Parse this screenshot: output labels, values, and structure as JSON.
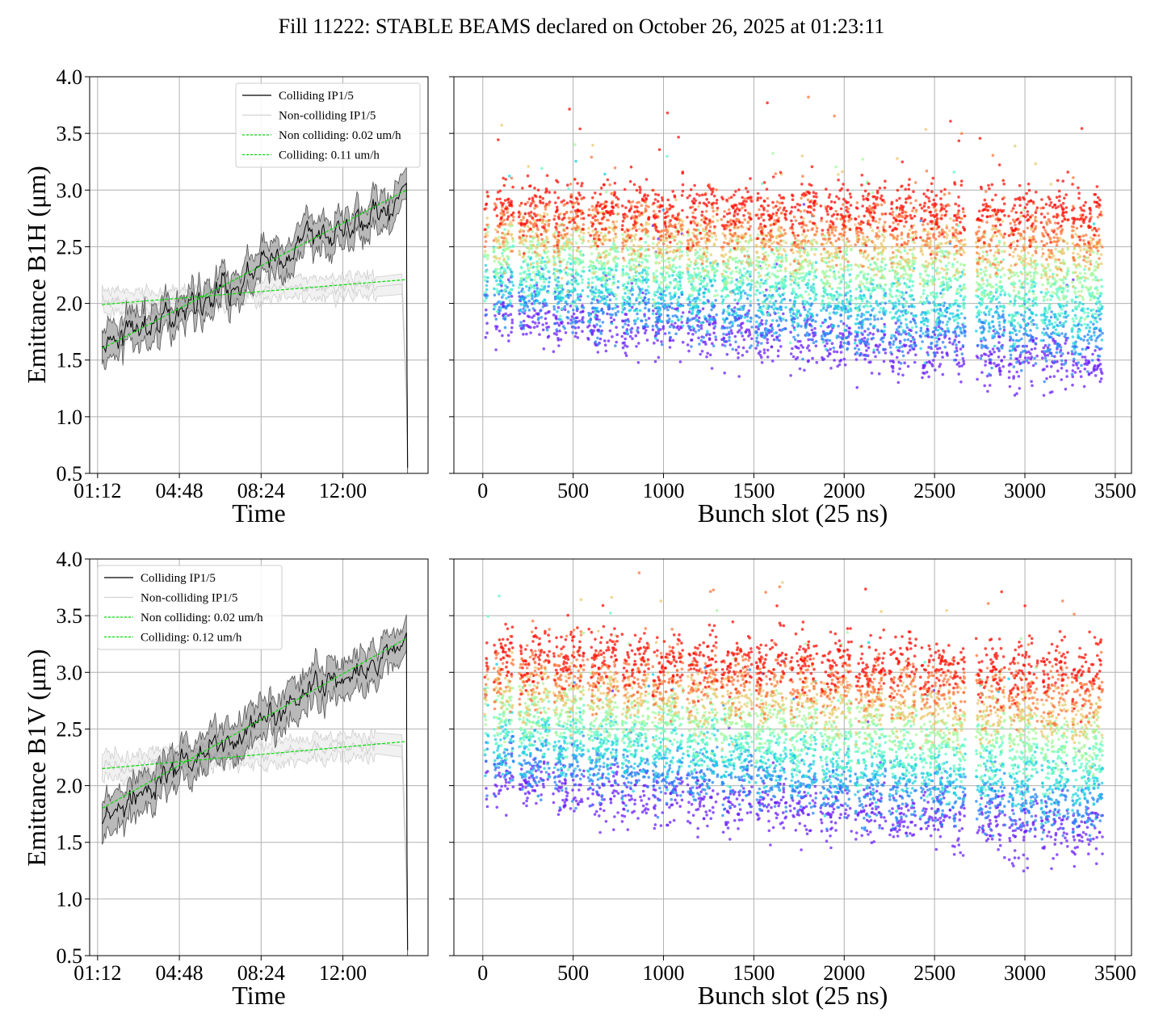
{
  "title": "Fill 11222: STABLE BEAMS declared on October 26, 2025 at 01:23:11",
  "chart_data": [
    {
      "id": "b1h-time",
      "type": "line",
      "xlabel": "Time",
      "ylabel": "Emittance B1H (μm)",
      "ylim": [
        0.5,
        4.0
      ],
      "yticks": [
        "0.5",
        "1.0",
        "1.5",
        "2.0",
        "2.5",
        "3.0",
        "3.5",
        "4.0"
      ],
      "xlim_hours": [
        0.85,
        15.75
      ],
      "xticks": [
        {
          "label": "01:12",
          "hours": 1.2
        },
        {
          "label": "04:48",
          "hours": 4.8
        },
        {
          "label": "08:24",
          "hours": 8.4
        },
        {
          "label": "12:00",
          "hours": 12.0
        }
      ],
      "legend_position": "top-right",
      "grid": true,
      "series": [
        {
          "name": "Colliding IP1/5",
          "color": "#000000",
          "band_color": "#808080",
          "x": [
            1.4,
            2.5,
            3.5,
            4.5,
            5.5,
            6.5,
            7.5,
            8.5,
            9.5,
            10.5,
            11.5,
            12.5,
            13.5,
            14.0,
            14.6,
            14.8,
            14.82,
            14.85
          ],
          "y": [
            1.58,
            1.76,
            1.82,
            1.92,
            2.02,
            2.12,
            2.2,
            2.35,
            2.42,
            2.58,
            2.6,
            2.7,
            2.82,
            2.86,
            2.95,
            3.06,
            1.5,
            0.55
          ],
          "band_width": 0.14
        },
        {
          "name": "Non-colliding IP1/5",
          "color": "#d3d3d3",
          "band_color": "#e6e6e6",
          "x": [
            1.4,
            2.5,
            4.0,
            6.0,
            8.0,
            10.0,
            12.0,
            13.5,
            14.6,
            14.8,
            14.85
          ],
          "y": [
            2.0,
            2.01,
            2.03,
            2.05,
            2.12,
            2.13,
            2.16,
            2.17,
            2.17,
            1.2,
            0.55
          ],
          "band_width": 0.09
        },
        {
          "name": "Non colliding: 0.02 um/h",
          "color": "#00dd00",
          "dashed": true,
          "x": [
            1.4,
            14.8
          ],
          "y": [
            1.99,
            2.21
          ]
        },
        {
          "name": "Colliding: 0.11 um/h",
          "color": "#00dd00",
          "dashed": true,
          "x": [
            1.4,
            14.8
          ],
          "y": [
            1.6,
            3.0
          ]
        }
      ]
    },
    {
      "id": "b1h-bunch",
      "type": "scatter",
      "xlabel": "Bunch slot (25 ns)",
      "ylabel": "",
      "xlim": [
        -160,
        3590
      ],
      "ylim": [
        0.5,
        4.0
      ],
      "xticks": [
        "0",
        "500",
        "1000",
        "1500",
        "2000",
        "2500",
        "3000",
        "3500"
      ],
      "grid": true,
      "colormap": "rainbow",
      "trains": [
        {
          "start": 10,
          "end": 30
        },
        {
          "start": 60,
          "end": 170
        },
        {
          "start": 200,
          "end": 370
        },
        {
          "start": 390,
          "end": 560
        },
        {
          "start": 580,
          "end": 750
        },
        {
          "start": 770,
          "end": 920
        },
        {
          "start": 940,
          "end": 1110
        },
        {
          "start": 1130,
          "end": 1300
        },
        {
          "start": 1320,
          "end": 1490
        },
        {
          "start": 1510,
          "end": 1680
        },
        {
          "start": 1700,
          "end": 1850
        },
        {
          "start": 1870,
          "end": 2040
        },
        {
          "start": 2060,
          "end": 2230
        },
        {
          "start": 2250,
          "end": 2400
        },
        {
          "start": 2420,
          "end": 2590
        },
        {
          "start": 2600,
          "end": 2670
        },
        {
          "start": 2730,
          "end": 2890
        },
        {
          "start": 2910,
          "end": 3070
        },
        {
          "start": 3090,
          "end": 3240
        },
        {
          "start": 3260,
          "end": 3430
        }
      ],
      "emittance_start": {
        "at_bunch_0": 1.85,
        "at_bunch_3450": 1.4
      },
      "emittance_end": {
        "at_bunch_0": 2.8,
        "at_bunch_3450": 2.75
      }
    },
    {
      "id": "b1v-time",
      "type": "line",
      "xlabel": "Time",
      "ylabel": "Emittance B1V (μm)",
      "ylim": [
        0.5,
        4.0
      ],
      "yticks": [
        "0.5",
        "1.0",
        "1.5",
        "2.0",
        "2.5",
        "3.0",
        "3.5",
        "4.0"
      ],
      "xlim_hours": [
        0.85,
        15.75
      ],
      "xticks": [
        {
          "label": "01:12",
          "hours": 1.2
        },
        {
          "label": "04:48",
          "hours": 4.8
        },
        {
          "label": "08:24",
          "hours": 8.4
        },
        {
          "label": "12:00",
          "hours": 12.0
        }
      ],
      "legend_position": "top-left",
      "grid": true,
      "series": [
        {
          "name": "Colliding IP1/5",
          "color": "#000000",
          "band_color": "#808080",
          "x": [
            1.4,
            2.5,
            3.5,
            4.5,
            5.5,
            6.5,
            7.5,
            8.5,
            9.5,
            10.5,
            11.5,
            12.5,
            13.5,
            14.0,
            14.6,
            14.8,
            14.82,
            14.85
          ],
          "y": [
            1.7,
            1.9,
            1.95,
            2.12,
            2.25,
            2.38,
            2.45,
            2.6,
            2.7,
            2.82,
            2.9,
            2.98,
            3.07,
            3.12,
            3.2,
            3.35,
            1.5,
            0.55
          ],
          "band_width": 0.16
        },
        {
          "name": "Non-colliding IP1/5",
          "color": "#d3d3d3",
          "band_color": "#e6e6e6",
          "x": [
            1.4,
            2.5,
            4.0,
            6.0,
            8.0,
            10.0,
            12.0,
            13.5,
            14.6,
            14.8,
            14.85
          ],
          "y": [
            2.15,
            2.17,
            2.2,
            2.25,
            2.28,
            2.3,
            2.33,
            2.35,
            2.35,
            1.2,
            0.55
          ],
          "band_width": 0.1
        },
        {
          "name": "Non colliding: 0.02 um/h",
          "color": "#00dd00",
          "dashed": true,
          "x": [
            1.4,
            14.8
          ],
          "y": [
            2.15,
            2.39
          ]
        },
        {
          "name": "Colliding: 0.12 um/h",
          "color": "#00dd00",
          "dashed": true,
          "x": [
            1.4,
            14.8
          ],
          "y": [
            1.8,
            3.3
          ]
        }
      ]
    },
    {
      "id": "b1v-bunch",
      "type": "scatter",
      "xlabel": "Bunch slot (25 ns)",
      "ylabel": "",
      "xlim": [
        -160,
        3590
      ],
      "ylim": [
        0.5,
        4.0
      ],
      "xticks": [
        "0",
        "500",
        "1000",
        "1500",
        "2000",
        "2500",
        "3000",
        "3500"
      ],
      "grid": true,
      "colormap": "rainbow",
      "trains": [
        {
          "start": 10,
          "end": 30
        },
        {
          "start": 60,
          "end": 170
        },
        {
          "start": 200,
          "end": 370
        },
        {
          "start": 390,
          "end": 560
        },
        {
          "start": 580,
          "end": 750
        },
        {
          "start": 770,
          "end": 920
        },
        {
          "start": 940,
          "end": 1110
        },
        {
          "start": 1130,
          "end": 1300
        },
        {
          "start": 1320,
          "end": 1490
        },
        {
          "start": 1510,
          "end": 1680
        },
        {
          "start": 1700,
          "end": 1850
        },
        {
          "start": 1870,
          "end": 2040
        },
        {
          "start": 2060,
          "end": 2230
        },
        {
          "start": 2250,
          "end": 2400
        },
        {
          "start": 2420,
          "end": 2590
        },
        {
          "start": 2600,
          "end": 2670
        },
        {
          "start": 2730,
          "end": 2890
        },
        {
          "start": 2910,
          "end": 3070
        },
        {
          "start": 3090,
          "end": 3240
        },
        {
          "start": 3260,
          "end": 3430
        }
      ],
      "emittance_start": {
        "at_bunch_0": 2.0,
        "at_bunch_3450": 1.5
      },
      "emittance_end": {
        "at_bunch_0": 3.1,
        "at_bunch_3450": 2.95
      }
    }
  ]
}
